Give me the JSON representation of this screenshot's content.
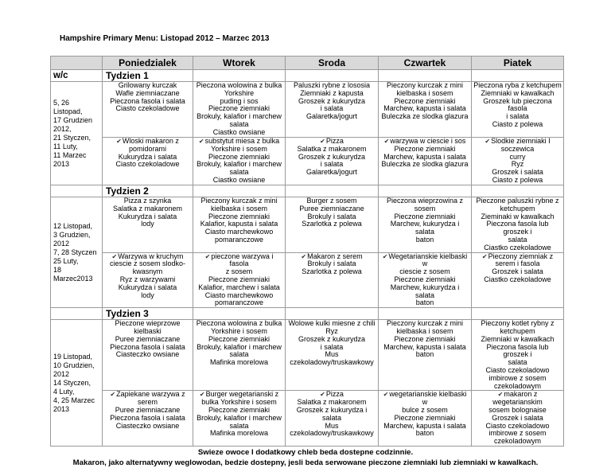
{
  "title": "Hampshire Primary Menu: Listopad 2012 – Marzec 2013",
  "header": {
    "wc": "w/c",
    "days": [
      "Poniedzialek",
      "Wtorek",
      "Sroda",
      "Czwartek",
      "Piatek"
    ]
  },
  "vegetarian_icon": "check-mark-icon",
  "vegetarian_symbol": "✔",
  "weeks": [
    {
      "label": "Tydzien 1",
      "dates": "5, 26 Listopad,\n17 Grudzien\n2012,\n21 Styczen,\n11 Luty,\n11 Marzec\n2013",
      "rows": [
        [
          "Grilowany kurczak\nWafle ziemniaczane\nPieczona fasola i salata\nCiasto czekoladowe",
          "Pieczona wolowina z bulka\nYorkshire\npuding i sos\nPieczone ziemniaki\nBrokuly, kalafior i marchew\nsalata\nCiastko owsiane",
          "Paluszki rybne z lososia\nZiemniaki z kapusta\nGroszek z kukurydza\ni salata\nGalaretka/jogurt",
          "Pieczony kurczak z mini\nkielbaska i sosem\nPieczone ziemniaki\nMarchew, kapusta i salata\nBuleczka ze slodka glazura",
          "Pieczona ryba z ketchupem\nZiemniaki w kawalkach\nGroszek lub pieczona fasola\ni salata\nCiasto z polewa"
        ],
        [
          "Wloski makaron z\npomidorami\nKukurydza i salata\nCiasto czekoladowe",
          "substytut miesa z bulka\nYorkshire i sosem\nPieczone ziemniaki\nBrokuly, kalafior i marchew\nsalata\nCiastko owsiane",
          "Pizza\nSalatka z makaronem\nGroszek z kukurydza\ni salata\nGalaretka/jogurt",
          "warzywa w ciescie i sos\nPieczone ziemniaki\nMarchew, kapusta i salata\nBuleczka ze slodka glazura",
          "Slodkie ziemniaki I\nsoczewica\ncurry\nRyz\nGroszek i salata\nCiasto z polewa"
        ]
      ]
    },
    {
      "label": "Tydzien 2",
      "dates": "12 Listopad,\n3 Grudzien,\n2012\n7, 28 Styczen\n25 Luty,\n18\nMarzec2013",
      "rows": [
        [
          "Pizza z szynka\nSalatka z makaronem\nKukurydza i salata\nlody",
          "Pieczony kurczak z mini\nkielbaska i sosem\nPieczone ziemniaki\nKalafior, kapusta i salata\nCiasto marchewkowo\npomaranczowe",
          "Burger z sosem\nPuree ziemniaczane\nBrokuly i salata\nSzarlotka z polewa",
          "Pieczona wieprzowina z\nsosem\nPieczone ziemniaki\nMarchew, kukurydza i salata\nbaton",
          "Pieczone paluszki rybne z\nketchupem\nZieminaki w kawalkach\nPieczona fasola lub groszek i\nsalata\nCiastko czekoladowe"
        ],
        [
          "Warzywa w kruchym\nciescie z sosem slodko-\nkwasnym\nRyz z warzywami\nKukurydza i salata\nlody",
          "pieczone warzywa i fasola\nz sosem\nPieczone ziemniaki\nKalafior, marchew i salata\nCiasto marchewkowo\npomaranczowe",
          "Makaron z serem\nBrokuly i salata\nSzarlotka z polewa",
          "Wegetarianskie kielbaski w\nciescie z sosem\nPieczone ziemniaki\nMarchew, kukurydza i salata\nbaton",
          "Pieczony ziemniak z\nserem i fasola\nGroszek i salata\nCiastko czekoladowe"
        ]
      ]
    },
    {
      "label": "Tydzien 3",
      "dates": "19 Listopad,\n10 Grudzien,\n2012\n14 Styczen,\n4 Luty,\n4, 25 Marzec\n2013",
      "rows": [
        [
          "Pieczone wieprzowe\nkielbaski\nPuree ziemniaczane\nPieczona fasola i salata\nCiasteczko owsiane",
          "Pieczona wolowina z bulka\nYorkshire i sosem\nPieczone ziemniaki\nBrokuly, kalafior i marchew\nsalata\nMafinka morelowa",
          "Wolowe kulki miesne z chili\nRyz\nGroszek z kukurydza\ni salata\nMus\nczekoladowy/truskawkowy",
          "Pieczony kurczak z mini\nkielbaska i sosem\nPieczone ziemniaki\nMarchew, kapusta i salata\nbaton",
          "Pieczony kotlet rybny z\nketchupem\nZiemniaki w kawalkach\nPieczona fasola lub groszek i\nsalata\nCiasto czekoladowo\nimbirowe z sosem\nczekoladowym"
        ],
        [
          "Zapiekane warzywa z\nserem\nPuree ziemniaczane\nPieczona fasola i salata\nCiasteczko owsiane",
          "Burger wegetarianski z\nbulka Yorkshire i sosem\nPieczone ziemniaki\nBrokuly, kalafior i marchew\nsalata\nMafinka morelowa",
          "Pizza\nSalatka z makaronem\nGroszek z kukurydza i salata\nMus\nczekoladowy/truskawkowy",
          "wegetarianskie kielbaski w\nbulce z sosem\nPieczone ziemniaki\nMarchew, kapusta  i salata\nbaton",
          "makaron z wegetarianskim\nsosem  bolognaise\nGroszek i salata\nCiasto czekoladowo\nimbirowe z sosem\nczekoladowym"
        ]
      ]
    }
  ],
  "footer": {
    "line1": "Swieze owoce I dodatkowy chleb beda dostepne codzinnie.",
    "line2": "Makaron, jako alternatywny weglowodan, bedzie dostepny, jesli beda serwowane pieczone ziemniaki lub ziemniaki w kawalkach."
  }
}
